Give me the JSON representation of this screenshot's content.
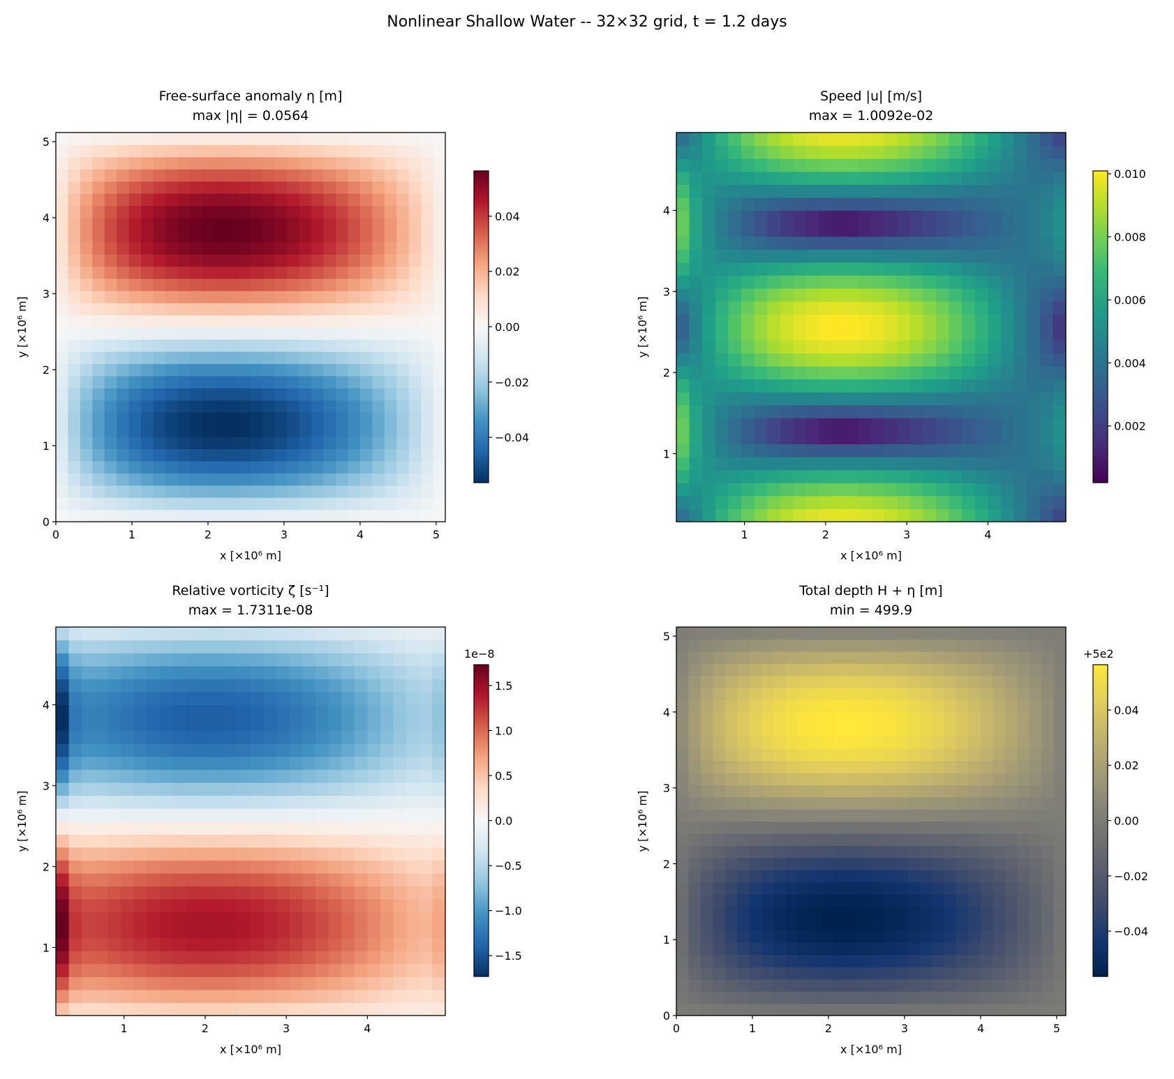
{
  "suptitle": "Nonlinear Shallow Water -- 32×32 grid, t = 1.2 days",
  "colors": {
    "axis": "#000000",
    "background": "#ffffff"
  },
  "chart_data": [
    {
      "type": "heatmap",
      "title": "Free-surface anomaly η [m]",
      "subtitle": "max |η| = 0.0564",
      "xlabel": "x [×10⁶ m]",
      "ylabel": "y [×10⁶ m]",
      "colormap": "RdBu_r",
      "grid": [
        32,
        32
      ],
      "xlim": [
        0,
        5.12
      ],
      "ylim": [
        0,
        5.12
      ],
      "xticks": [
        "0",
        "1",
        "2",
        "3",
        "4",
        "5"
      ],
      "xtick_values": [
        0,
        1,
        2,
        3,
        4,
        5
      ],
      "yticks": [
        "0",
        "1",
        "2",
        "3",
        "4",
        "5"
      ],
      "ytick_values": [
        0,
        1,
        2,
        3,
        4,
        5
      ],
      "vmin": -0.0564,
      "vmax": 0.0564,
      "max_abs": 0.0564,
      "colorbar": {
        "ticks": [
          "−0.04",
          "−0.02",
          "0.00",
          "0.02",
          "0.04"
        ],
        "tick_values": [
          -0.04,
          -0.02,
          0,
          0.02,
          0.04
        ],
        "offset_text": ""
      }
    },
    {
      "type": "heatmap",
      "title": "Speed |u| [m/s]",
      "subtitle": "max = 1.0092e-02",
      "xlabel": "x [×10⁶ m]",
      "ylabel": "y [×10⁶ m]",
      "colormap": "viridis",
      "grid": [
        30,
        30
      ],
      "xlim": [
        0.16,
        4.96
      ],
      "ylim": [
        0.16,
        4.96
      ],
      "xticks": [
        "1",
        "2",
        "3",
        "4"
      ],
      "xtick_values": [
        1,
        2,
        3,
        4
      ],
      "yticks": [
        "1",
        "2",
        "3",
        "4"
      ],
      "ytick_values": [
        1,
        2,
        3,
        4
      ],
      "vmin": 0.0002,
      "vmax": 0.010092,
      "max": 0.010092,
      "colorbar": {
        "ticks": [
          "0.002",
          "0.004",
          "0.006",
          "0.008",
          "0.010"
        ],
        "tick_values": [
          0.002,
          0.004,
          0.006,
          0.008,
          0.01
        ],
        "offset_text": ""
      }
    },
    {
      "type": "heatmap",
      "title": "Relative vorticity ζ [s⁻¹]",
      "subtitle": "max = 1.7311e-08",
      "xlabel": "x [×10⁶ m]",
      "ylabel": "y [×10⁶ m]",
      "colormap": "RdBu_r",
      "grid": [
        30,
        30
      ],
      "xlim": [
        0.16,
        4.96
      ],
      "ylim": [
        0.16,
        4.96
      ],
      "xticks": [
        "1",
        "2",
        "3",
        "4"
      ],
      "xtick_values": [
        1,
        2,
        3,
        4
      ],
      "yticks": [
        "1",
        "2",
        "3",
        "4"
      ],
      "ytick_values": [
        1,
        2,
        3,
        4
      ],
      "vmin": -1.7311e-08,
      "vmax": 1.7311e-08,
      "max": 1.7311e-08,
      "colorbar": {
        "ticks": [
          "−1.5",
          "−1.0",
          "−0.5",
          "0.0",
          "0.5",
          "1.0",
          "1.5"
        ],
        "tick_values": [
          -1.5e-08,
          -1e-08,
          -5e-09,
          0,
          5e-09,
          1e-08,
          1.5e-08
        ],
        "offset_text": "1e−8"
      }
    },
    {
      "type": "heatmap",
      "title": "Total depth H + η [m]",
      "subtitle": "min = 499.9",
      "xlabel": "x [×10⁶ m]",
      "ylabel": "y [×10⁶ m]",
      "colormap": "cividis",
      "grid": [
        32,
        32
      ],
      "xlim": [
        0,
        5.12
      ],
      "ylim": [
        0,
        5.12
      ],
      "xticks": [
        "0",
        "1",
        "2",
        "3",
        "4",
        "5"
      ],
      "xtick_values": [
        0,
        1,
        2,
        3,
        4,
        5
      ],
      "yticks": [
        "0",
        "1",
        "2",
        "3",
        "4",
        "5"
      ],
      "ytick_values": [
        0,
        1,
        2,
        3,
        4,
        5
      ],
      "vmin": 499.9436,
      "vmax": 500.0564,
      "min": 499.9,
      "colorbar": {
        "ticks": [
          "−0.04",
          "−0.02",
          "0.00",
          "0.02",
          "0.04"
        ],
        "tick_values": [
          499.96,
          499.98,
          500,
          500.02,
          500.04
        ],
        "offset_text": "+5e2"
      }
    }
  ]
}
